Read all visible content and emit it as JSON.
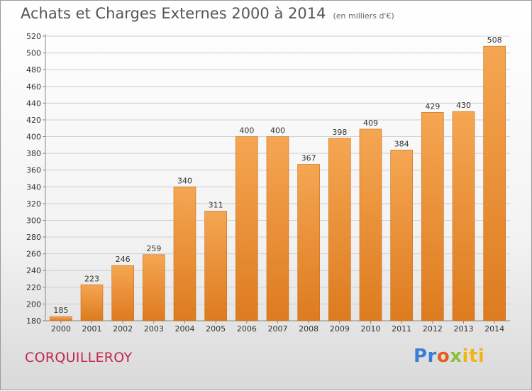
{
  "title": "Achats et Charges Externes 2000 à 2014",
  "unit_note": "(en milliers d'€)",
  "city": "CORQUILLEROY",
  "logo": {
    "p1": "Pr",
    "p2": "o",
    "p3": "x",
    "p4": "iti"
  },
  "colors": {
    "bar_top": "#f5a652",
    "bar_bottom": "#dd7b1f",
    "grid": "#cfcfcf",
    "text": "#333333"
  },
  "chart_data": {
    "type": "bar",
    "categories": [
      "2000",
      "2001",
      "2002",
      "2003",
      "2004",
      "2005",
      "2006",
      "2007",
      "2008",
      "2009",
      "2010",
      "2011",
      "2012",
      "2013",
      "2014"
    ],
    "values": [
      185,
      223,
      246,
      259,
      340,
      311,
      400,
      400,
      367,
      398,
      409,
      384,
      429,
      430,
      508
    ],
    "ylim": [
      180,
      520
    ],
    "yticks": [
      180,
      200,
      220,
      240,
      260,
      280,
      300,
      320,
      340,
      360,
      380,
      400,
      420,
      440,
      460,
      480,
      500,
      520
    ],
    "grid": true,
    "data_labels": true
  }
}
